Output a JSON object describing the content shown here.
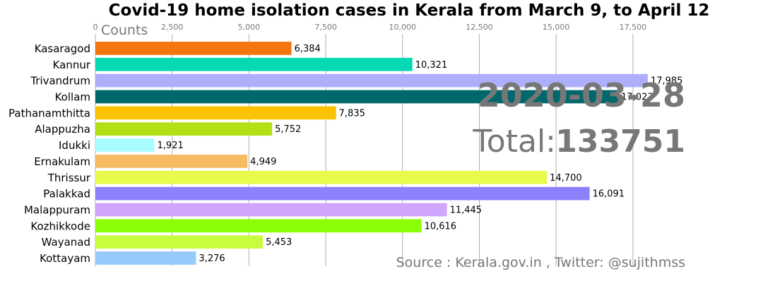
{
  "chart_data": {
    "type": "bar",
    "orientation": "horizontal",
    "title": "Covid-19 home isolation cases in Kerala from March 9, to April 12",
    "xlabel": "Counts",
    "xlim": [
      0,
      18400
    ],
    "xticks": [
      0,
      2500,
      5000,
      7500,
      10000,
      12500,
      15000,
      17500
    ],
    "xtick_labels": [
      "0",
      "2,500",
      "5,000",
      "7,500",
      "10,000",
      "12,500",
      "15,000",
      "17,500"
    ],
    "grid": true,
    "categories": [
      "Kasaragod",
      "Kannur",
      "Trivandrum",
      "Kollam",
      "Pathanamthitta",
      "Alappuzha",
      "Idukki",
      "Ernakulam",
      "Thrissur",
      "Palakkad",
      "Malappuram",
      "Kozhikkode",
      "Wayanad",
      "Kottayam"
    ],
    "values": [
      6384,
      10321,
      17985,
      17023,
      7835,
      5752,
      1921,
      4949,
      14700,
      16091,
      11445,
      10616,
      5453,
      3276
    ],
    "value_labels": [
      "6,384",
      "10,321",
      "17,985",
      "17,023",
      "7,835",
      "5,752",
      "1,921",
      "4,949",
      "14,700",
      "16,091",
      "11,445",
      "10,616",
      "5,453",
      "3,276"
    ],
    "colors": [
      "#f5750e",
      "#05d9b4",
      "#adaffd",
      "#00686a",
      "#fbc200",
      "#b2e015",
      "#aafdfe",
      "#f7bb62",
      "#e8fa4c",
      "#8d80fd",
      "#d0a5fd",
      "#89fe05",
      "#c8fd3d",
      "#95cafa"
    ],
    "date": "2020-03-28",
    "total_label": "Total:",
    "total_value": "133751",
    "source": "Source : Kerala.gov.in , Twitter: @sujithmss"
  }
}
